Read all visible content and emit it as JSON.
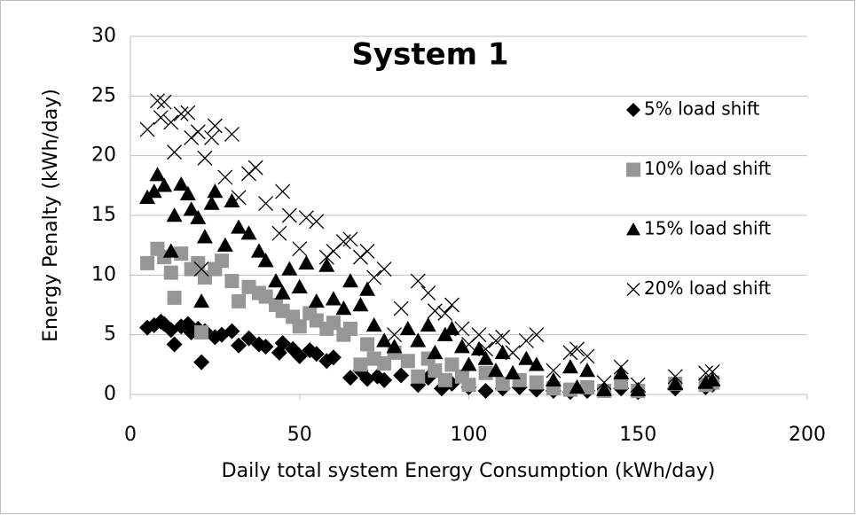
{
  "chart_data": {
    "type": "scatter",
    "title": "System 1",
    "xlabel": "Daily total system Energy Consumption (kWh/day)",
    "ylabel": "Energy Penalty (kWh/day)",
    "xlim": [
      0,
      200
    ],
    "xticks": [
      0,
      50,
      100,
      150,
      200
    ],
    "ylim": [
      0,
      30
    ],
    "yticks": [
      0,
      5,
      10,
      15,
      20,
      25,
      30
    ],
    "grid": true,
    "legend": "right",
    "series": [
      {
        "name": "5% load shift",
        "color": "#000000",
        "marker": "diamond",
        "x": [
          5,
          7,
          9,
          10,
          12,
          13,
          15,
          17,
          18,
          20,
          21,
          22,
          25,
          27,
          30,
          32,
          35,
          38,
          40,
          44,
          45,
          48,
          50,
          53,
          55,
          58,
          60,
          65,
          68,
          70,
          73,
          75,
          80,
          85,
          88,
          92,
          95,
          100,
          105,
          110,
          115,
          120,
          125,
          130,
          135,
          145,
          150,
          161,
          170,
          172
        ],
        "values": [
          5.6,
          5.8,
          6.1,
          5.9,
          5.4,
          4.2,
          5.7,
          5.9,
          5.2,
          5.5,
          2.7,
          5.3,
          4.8,
          5.0,
          5.3,
          4.1,
          4.7,
          4.2,
          4.0,
          3.5,
          4.3,
          3.8,
          3.2,
          3.7,
          3.4,
          2.8,
          3.1,
          1.4,
          2.0,
          1.3,
          1.5,
          1.2,
          1.6,
          0.8,
          1.4,
          0.5,
          0.9,
          0.6,
          0.3,
          0.5,
          0.6,
          0.4,
          0.3,
          0.2,
          0.3,
          0.5,
          0.2,
          0.5,
          0.6,
          0.8
        ]
      },
      {
        "name": "10% load shift",
        "color": "#969696",
        "marker": "square",
        "x": [
          5,
          8,
          10,
          12,
          13,
          15,
          18,
          20,
          21,
          22,
          25,
          27,
          30,
          32,
          35,
          38,
          40,
          43,
          45,
          48,
          50,
          53,
          55,
          58,
          60,
          63,
          65,
          68,
          70,
          72,
          75,
          78,
          82,
          85,
          88,
          90,
          93,
          95,
          98,
          100,
          105,
          110,
          115,
          120,
          125,
          130,
          135,
          140,
          145,
          150,
          161,
          170,
          172
        ],
        "values": [
          11.0,
          12.2,
          11.5,
          10.2,
          8.1,
          11.8,
          10.5,
          11.0,
          5.2,
          9.8,
          10.5,
          11.2,
          9.5,
          7.8,
          9.0,
          8.5,
          8.2,
          7.5,
          7.0,
          6.5,
          5.7,
          6.8,
          6.2,
          5.5,
          6.0,
          5.0,
          5.5,
          2.5,
          4.2,
          3.0,
          2.6,
          3.5,
          2.8,
          1.5,
          3.0,
          2.0,
          1.2,
          2.5,
          1.5,
          0.8,
          1.8,
          0.9,
          1.2,
          1.0,
          0.5,
          0.4,
          0.6,
          0.3,
          1.0,
          0.3,
          0.9,
          0.8,
          1.0
        ]
      },
      {
        "name": "15% load shift",
        "color": "#000000",
        "marker": "triangle",
        "x": [
          5,
          7,
          8,
          10,
          12,
          13,
          15,
          17,
          18,
          20,
          21,
          22,
          24,
          25,
          28,
          30,
          32,
          35,
          38,
          40,
          43,
          45,
          47,
          50,
          52,
          55,
          58,
          60,
          63,
          65,
          68,
          70,
          72,
          75,
          78,
          82,
          85,
          88,
          90,
          93,
          95,
          98,
          100,
          103,
          105,
          108,
          110,
          113,
          117,
          120,
          125,
          130,
          132,
          135,
          140,
          145,
          150,
          161,
          170,
          172
        ],
        "values": [
          16.5,
          17.0,
          18.4,
          17.5,
          12.0,
          15.0,
          17.6,
          16.8,
          15.5,
          14.8,
          7.8,
          13.2,
          16.0,
          17.0,
          12.5,
          16.2,
          14.0,
          13.5,
          12.0,
          11.2,
          9.5,
          8.5,
          10.5,
          9.0,
          11.0,
          7.8,
          10.8,
          8.0,
          7.2,
          9.5,
          7.5,
          8.8,
          5.8,
          4.5,
          4.0,
          5.5,
          4.5,
          5.8,
          3.5,
          5.0,
          5.5,
          4.0,
          2.5,
          3.8,
          3.0,
          2.0,
          3.5,
          1.8,
          3.0,
          2.5,
          1.2,
          2.3,
          0.6,
          2.0,
          0.4,
          1.8,
          0.4,
          0.9,
          1.0,
          1.2
        ]
      },
      {
        "name": "20% load shift",
        "color": "#000000",
        "marker": "x",
        "x": [
          5,
          8,
          9,
          10,
          12,
          13,
          15,
          17,
          18,
          20,
          21,
          22,
          24,
          25,
          28,
          30,
          32,
          35,
          37,
          40,
          44,
          45,
          47,
          50,
          52,
          55,
          58,
          60,
          63,
          65,
          68,
          70,
          72,
          75,
          78,
          80,
          85,
          88,
          90,
          93,
          95,
          98,
          100,
          103,
          105,
          108,
          110,
          113,
          117,
          120,
          125,
          130,
          132,
          135,
          140,
          145,
          150,
          161,
          170,
          172
        ],
        "values": [
          22.2,
          24.6,
          23.2,
          24.5,
          22.8,
          20.3,
          23.5,
          23.6,
          21.5,
          22.0,
          10.5,
          19.8,
          21.5,
          22.5,
          18.2,
          21.8,
          16.5,
          18.5,
          19.0,
          16.0,
          13.5,
          17.0,
          15.0,
          12.2,
          14.8,
          14.5,
          11.5,
          12.0,
          12.8,
          13.0,
          11.5,
          12.0,
          9.8,
          10.5,
          5.0,
          7.2,
          9.5,
          8.5,
          7.0,
          6.8,
          7.5,
          5.5,
          4.2,
          5.0,
          3.8,
          4.5,
          4.8,
          3.5,
          4.5,
          5.0,
          2.0,
          3.5,
          3.8,
          3.2,
          1.0,
          2.3,
          0.8,
          1.5,
          1.8,
          1.9
        ]
      }
    ]
  }
}
